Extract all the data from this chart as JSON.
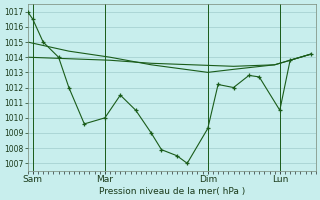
{
  "background_color": "#c8eeed",
  "grid_color": "#a0cccc",
  "line_color": "#1a5c1a",
  "xlabel": "Pression niveau de la mer( hPa )",
  "ylim": [
    1006.5,
    1017.5
  ],
  "yticks": [
    1007,
    1008,
    1009,
    1010,
    1011,
    1012,
    1013,
    1014,
    1015,
    1016,
    1017
  ],
  "xlim": [
    0,
    28
  ],
  "xtick_labels": [
    "Sam",
    "Mar",
    "Dim",
    "Lun"
  ],
  "xtick_positions": [
    0.5,
    7.5,
    17.5,
    24.5
  ],
  "vline_positions": [
    0.5,
    7.5,
    17.5,
    24.5
  ],
  "line1_x": [
    0,
    0.5,
    1.5,
    3,
    4,
    5.5,
    7.5,
    9,
    10.5,
    12,
    13,
    14.5,
    15.5,
    17.5,
    18.5,
    20,
    21.5,
    22.5,
    24.5,
    25.5,
    27.5
  ],
  "line1_y": [
    1017.0,
    1016.5,
    1015.0,
    1014.0,
    1012.0,
    1009.6,
    1010.0,
    1011.5,
    1010.5,
    1009.0,
    1007.9,
    1007.5,
    1007.0,
    1009.3,
    1012.2,
    1012.0,
    1012.8,
    1012.7,
    1010.5,
    1013.8,
    1014.2
  ],
  "line2_x": [
    0,
    4,
    8,
    12,
    16,
    20,
    24,
    27.5
  ],
  "line2_y": [
    1014.0,
    1013.9,
    1013.8,
    1013.6,
    1013.5,
    1013.4,
    1013.5,
    1014.2
  ],
  "line3_x": [
    0,
    4,
    8,
    12,
    17.5,
    20,
    24,
    27.5
  ],
  "line3_y": [
    1015.0,
    1014.4,
    1014.0,
    1013.5,
    1013.0,
    1013.2,
    1013.5,
    1014.2
  ],
  "marker_line1": true,
  "total_x": 28
}
